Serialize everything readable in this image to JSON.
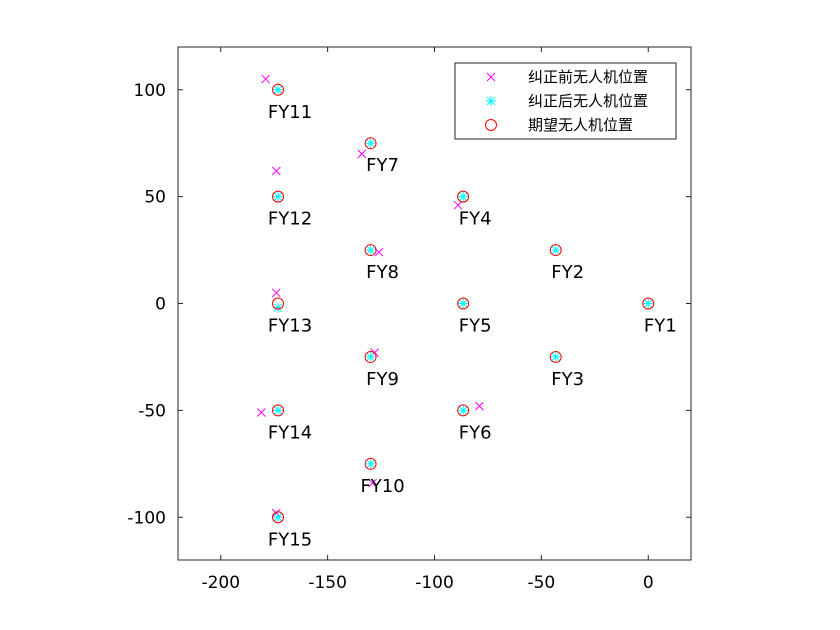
{
  "chart_data": {
    "type": "scatter",
    "title": "",
    "xlabel": "",
    "ylabel": "",
    "xlim": [
      -220,
      20
    ],
    "ylim": [
      -120,
      120
    ],
    "xticks": [
      -200,
      -150,
      -100,
      -50,
      0
    ],
    "yticks": [
      100,
      50,
      0,
      -50,
      -100
    ],
    "grid": false,
    "legend_position": "top-right",
    "series": [
      {
        "name": "纠正前无人机位置",
        "marker": "x",
        "color": "#ff00ff",
        "points": [
          [
            -179,
            105
          ],
          [
            -174,
            62
          ],
          [
            -174,
            5
          ],
          [
            -181,
            -51
          ],
          [
            -174,
            -98
          ],
          [
            -134,
            70
          ],
          [
            -126,
            24
          ],
          [
            -128,
            -23
          ],
          [
            -129,
            -84
          ],
          [
            -89,
            46
          ],
          [
            -79,
            -48
          ]
        ]
      },
      {
        "name": "纠正后无人机位置",
        "marker": "asterisk",
        "color": "#00ffff",
        "points": [
          [
            0,
            0
          ],
          [
            -43.3,
            25
          ],
          [
            -43.3,
            -25
          ],
          [
            -86.6,
            50
          ],
          [
            -86.6,
            0
          ],
          [
            -86.6,
            -50
          ],
          [
            -129.9,
            75
          ],
          [
            -129.9,
            25
          ],
          [
            -129.9,
            -25
          ],
          [
            -129.9,
            -75
          ],
          [
            -173.2,
            100
          ],
          [
            -173.2,
            50
          ],
          [
            -173.2,
            -2
          ],
          [
            -173.2,
            -50
          ],
          [
            -173.2,
            -100
          ]
        ]
      },
      {
        "name": "期望无人机位置",
        "marker": "circle",
        "color": "#ff0000",
        "points": [
          [
            0,
            0
          ],
          [
            -43.3,
            25
          ],
          [
            -43.3,
            -25
          ],
          [
            -86.6,
            50
          ],
          [
            -86.6,
            0
          ],
          [
            -86.6,
            -50
          ],
          [
            -129.9,
            75
          ],
          [
            -129.9,
            25
          ],
          [
            -129.9,
            -25
          ],
          [
            -129.9,
            -75
          ],
          [
            -173.2,
            100
          ],
          [
            -173.2,
            50
          ],
          [
            -173.2,
            0
          ],
          [
            -173.2,
            -50
          ],
          [
            -173.2,
            -100
          ]
        ]
      }
    ],
    "annotations": [
      {
        "text": "FY1",
        "x": 0,
        "y": 0
      },
      {
        "text": "FY2",
        "x": -43.3,
        "y": 25
      },
      {
        "text": "FY3",
        "x": -43.3,
        "y": -25
      },
      {
        "text": "FY4",
        "x": -86.6,
        "y": 50
      },
      {
        "text": "FY5",
        "x": -86.6,
        "y": 0
      },
      {
        "text": "FY6",
        "x": -86.6,
        "y": -50
      },
      {
        "text": "FY7",
        "x": -129.9,
        "y": 75
      },
      {
        "text": "FY8",
        "x": -129.9,
        "y": 25
      },
      {
        "text": "FY9",
        "x": -129.9,
        "y": -25
      },
      {
        "text": "FY10",
        "x": -129.9,
        "y": -75
      },
      {
        "text": "FY11",
        "x": -173.2,
        "y": 100
      },
      {
        "text": "FY12",
        "x": -173.2,
        "y": 50
      },
      {
        "text": "FY13",
        "x": -173.2,
        "y": 0
      },
      {
        "text": "FY14",
        "x": -173.2,
        "y": -50
      },
      {
        "text": "FY15",
        "x": -173.2,
        "y": -100
      }
    ]
  }
}
